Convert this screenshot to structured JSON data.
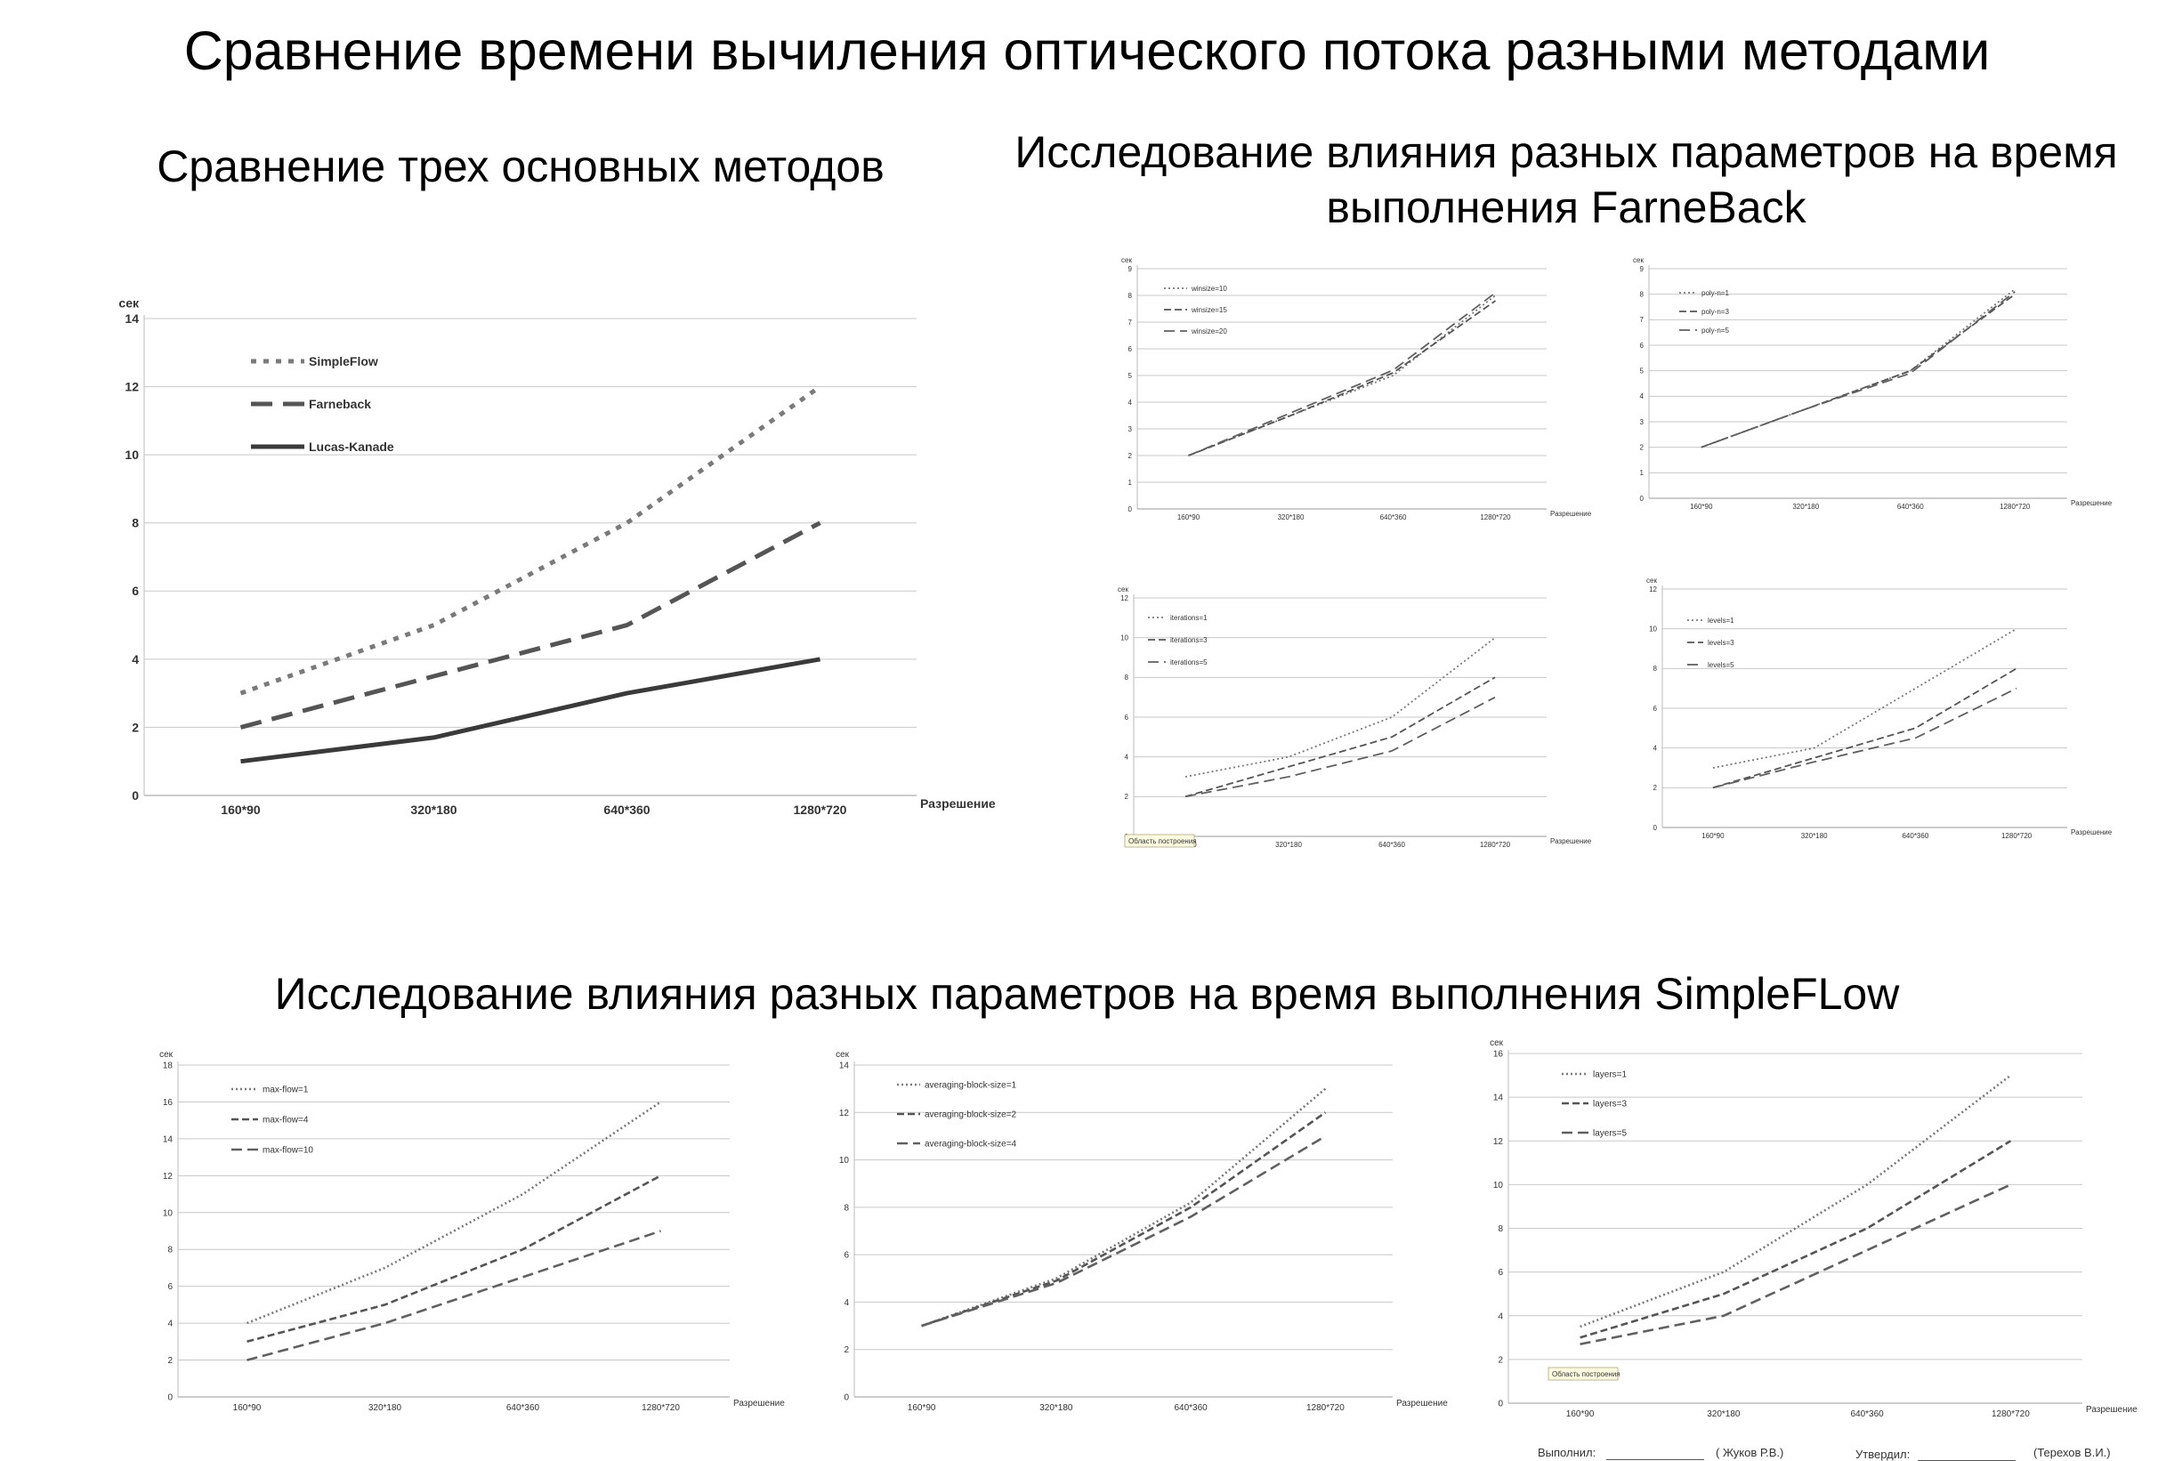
{
  "title": "Сравнение времени вычиления оптического потока разными методами",
  "sections": {
    "left": "Сравнение трех основных методов",
    "right": "Исследование влияния разных параметров на время выполнения FarneBack",
    "bottom": "Исследование влияния разных параметров на время выполнения SimpleFLow"
  },
  "tooltip": "Область построения",
  "footer": {
    "made_label": "Выполнил:",
    "made_name": "(  Жуков Р.В.)",
    "approved_label": "Утвердил:",
    "approved_name": "(Терехов В.И.)"
  },
  "chart_data": [
    {
      "type": "line",
      "title": "",
      "xlabel": "Разрешение",
      "ylabel": "сек",
      "categories": [
        "160*90",
        "320*180",
        "640*360",
        "1280*720"
      ],
      "ylim": [
        0,
        14
      ],
      "ystep": 2,
      "grid": true,
      "legend": "top-left",
      "series": [
        {
          "name": "SimpleFlow",
          "values": [
            3,
            5,
            8,
            12
          ]
        },
        {
          "name": "Farneback",
          "values": [
            2,
            3.5,
            5,
            8
          ]
        },
        {
          "name": "Lucas-Kanade",
          "values": [
            1,
            1.7,
            3,
            4
          ]
        }
      ]
    },
    {
      "type": "line",
      "title": "",
      "xlabel": "Разрешение",
      "ylabel": "сек",
      "categories": [
        "160*90",
        "320*180",
        "640*360",
        "1280*720"
      ],
      "ylim": [
        0,
        9
      ],
      "ystep": 1,
      "grid": true,
      "legend": "top-left",
      "series": [
        {
          "name": "winsize=10",
          "values": [
            2,
            3.5,
            5,
            8
          ]
        },
        {
          "name": "winsize=15",
          "values": [
            2,
            3.5,
            5.1,
            7.8
          ]
        },
        {
          "name": "winsize=20",
          "values": [
            2,
            3.6,
            5.2,
            8.1
          ]
        }
      ]
    },
    {
      "type": "line",
      "title": "",
      "xlabel": "Разрешение",
      "ylabel": "сек",
      "categories": [
        "160*90",
        "320*180",
        "640*360",
        "1280*720"
      ],
      "ylim": [
        0,
        9
      ],
      "ystep": 1,
      "grid": true,
      "legend": "top-left",
      "series": [
        {
          "name": "poly-n=1",
          "values": [
            2,
            3.5,
            5,
            8.2
          ]
        },
        {
          "name": "poly-n=3",
          "values": [
            2,
            3.5,
            5,
            8
          ]
        },
        {
          "name": "poly-n=5",
          "values": [
            2,
            3.5,
            4.9,
            8.1
          ]
        }
      ]
    },
    {
      "type": "line",
      "title": "",
      "xlabel": "Разрешение",
      "ylabel": "сек",
      "categories": [
        "160*90",
        "320*180",
        "640*360",
        "1280*720"
      ],
      "ylim": [
        0,
        12
      ],
      "ystep": 2,
      "grid": true,
      "legend": "top-left",
      "series": [
        {
          "name": "iterations=1",
          "values": [
            3,
            4,
            6,
            10
          ]
        },
        {
          "name": "iterations=3",
          "values": [
            2,
            3.5,
            5,
            8
          ]
        },
        {
          "name": "iterations=5",
          "values": [
            2,
            3,
            4.3,
            7
          ]
        }
      ]
    },
    {
      "type": "line",
      "title": "",
      "xlabel": "Разрешение",
      "ylabel": "сек",
      "categories": [
        "160*90",
        "320*180",
        "640*360",
        "1280*720"
      ],
      "ylim": [
        0,
        12
      ],
      "ystep": 2,
      "grid": true,
      "legend": "top-left",
      "series": [
        {
          "name": "levels=1",
          "values": [
            3,
            4,
            7,
            10
          ]
        },
        {
          "name": "levels=3",
          "values": [
            2,
            3.5,
            5,
            8
          ]
        },
        {
          "name": "levels=5",
          "values": [
            2,
            3.3,
            4.5,
            7
          ]
        }
      ]
    },
    {
      "type": "line",
      "title": "",
      "xlabel": "Разрешение",
      "ylabel": "сек",
      "categories": [
        "160*90",
        "320*180",
        "640*360",
        "1280*720"
      ],
      "ylim": [
        0,
        18
      ],
      "ystep": 2,
      "grid": true,
      "legend": "top-left",
      "series": [
        {
          "name": "max-flow=1",
          "values": [
            4,
            7,
            11,
            16
          ]
        },
        {
          "name": "max-flow=4",
          "values": [
            3,
            5,
            8,
            12
          ]
        },
        {
          "name": "max-flow=10",
          "values": [
            2,
            4,
            6.5,
            9
          ]
        }
      ]
    },
    {
      "type": "line",
      "title": "",
      "xlabel": "Разрешение",
      "ylabel": "сек",
      "categories": [
        "160*90",
        "320*180",
        "640*360",
        "1280*720"
      ],
      "ylim": [
        0,
        14
      ],
      "ystep": 2,
      "grid": true,
      "legend": "top-left",
      "series": [
        {
          "name": "averaging-block-size=1",
          "values": [
            3,
            5,
            8.2,
            13
          ]
        },
        {
          "name": "averaging-block-size=2",
          "values": [
            3,
            4.9,
            8,
            12
          ]
        },
        {
          "name": "averaging-block-size=4",
          "values": [
            3,
            4.8,
            7.6,
            11
          ]
        }
      ]
    },
    {
      "type": "line",
      "title": "",
      "xlabel": "Разрешение",
      "ylabel": "сек",
      "categories": [
        "160*90",
        "320*180",
        "640*360",
        "1280*720"
      ],
      "ylim": [
        0,
        16
      ],
      "ystep": 2,
      "grid": true,
      "legend": "top-left",
      "series": [
        {
          "name": "layers=1",
          "values": [
            3.5,
            6,
            10,
            15
          ]
        },
        {
          "name": "layers=3",
          "values": [
            3,
            5,
            8,
            12
          ]
        },
        {
          "name": "layers=5",
          "values": [
            2.7,
            4,
            7,
            10
          ]
        }
      ]
    }
  ]
}
